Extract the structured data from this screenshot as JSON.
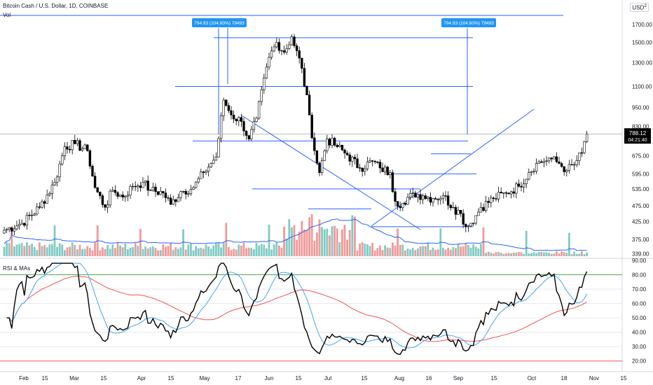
{
  "header": {
    "symbol": "Bitcoin Cash / U.S. Dollar, 1D, COINBASE",
    "volume_label": "Vol",
    "rsi_label": "RSI & MAs",
    "currency": "USD",
    "currency_sup": "2"
  },
  "colors": {
    "up": "#ffffff",
    "down": "#000000",
    "candle_border": "#000000",
    "drawing": "#2962ff",
    "label_bg": "#2196f3",
    "vol_up": "#80cbc4",
    "vol_down": "#ef9a9a",
    "vol_ma": "#2962ff",
    "rsi": "#000000",
    "rsi_ma_fast": "#42a5f5",
    "rsi_ma_slow": "#ef5350",
    "band_80": "#4caf50",
    "band_20": "#ef5350",
    "grid": "#e0e3eb"
  },
  "price_badge": {
    "price": "788.12",
    "countdown": "04:21:40"
  },
  "measure_labels": [
    "794.93 (104.60%) 79493",
    "794.93 (104.60%) 79493"
  ],
  "chart_data": {
    "type": "candlestick",
    "title": "Bitcoin Cash / U.S. Dollar, 1D, COINBASE",
    "y_scale": "log",
    "ylim": [
      330,
      1850
    ],
    "y_ticks": [
      339,
      375,
      425,
      475,
      535,
      595,
      675,
      750,
      830,
      950,
      1100,
      1300,
      1500,
      1700
    ],
    "y_tick_labels": [
      "339.00",
      "375.00",
      "425.00",
      "475.00",
      "535.00",
      "595.00",
      "675.00",
      "750.00",
      "830.00",
      "950.00",
      "1100.00",
      "1300.00",
      "1500.00",
      "1700.00"
    ],
    "x_tick_labels": [
      "Feb",
      "15",
      "Mar",
      "15",
      "Apr",
      "15",
      "May",
      "17",
      "Jun",
      "15",
      "Jul",
      "15",
      "Aug",
      "16",
      "Sep",
      "15",
      "Oct",
      "18",
      "Nov",
      "15"
    ],
    "start_date": "2021-01-18",
    "last_close": 788.12,
    "anchors": [
      [
        "2021-01-18",
        400
      ],
      [
        "2021-01-25",
        420
      ],
      [
        "2021-02-01",
        470
      ],
      [
        "2021-02-07",
        560
      ],
      [
        "2021-02-11",
        720
      ],
      [
        "2021-02-15",
        735
      ],
      [
        "2021-02-20",
        700
      ],
      [
        "2021-02-23",
        540
      ],
      [
        "2021-02-27",
        470
      ],
      [
        "2021-03-02",
        530
      ],
      [
        "2021-03-06",
        505
      ],
      [
        "2021-03-10",
        545
      ],
      [
        "2021-03-14",
        560
      ],
      [
        "2021-03-17",
        530
      ],
      [
        "2021-03-22",
        520
      ],
      [
        "2021-03-25",
        480
      ],
      [
        "2021-03-29",
        525
      ],
      [
        "2021-04-03",
        540
      ],
      [
        "2021-04-07",
        600
      ],
      [
        "2021-04-10",
        640
      ],
      [
        "2021-04-12",
        670
      ],
      [
        "2021-04-15",
        1000
      ],
      [
        "2021-04-18",
        900
      ],
      [
        "2021-04-22",
        860
      ],
      [
        "2021-04-25",
        760
      ],
      [
        "2021-04-28",
        880
      ],
      [
        "2021-05-03",
        1350
      ],
      [
        "2021-05-06",
        1500
      ],
      [
        "2021-05-09",
        1400
      ],
      [
        "2021-05-12",
        1560
      ],
      [
        "2021-05-16",
        1250
      ],
      [
        "2021-05-19",
        900
      ],
      [
        "2021-05-21",
        700
      ],
      [
        "2021-05-23",
        600
      ],
      [
        "2021-05-26",
        760
      ],
      [
        "2021-05-30",
        720
      ],
      [
        "2021-06-03",
        680
      ],
      [
        "2021-06-08",
        620
      ],
      [
        "2021-06-13",
        650
      ],
      [
        "2021-06-16",
        620
      ],
      [
        "2021-06-20",
        600
      ],
      [
        "2021-06-22",
        490
      ],
      [
        "2021-06-26",
        480
      ],
      [
        "2021-06-29",
        520
      ],
      [
        "2021-07-03",
        510
      ],
      [
        "2021-07-07",
        500
      ],
      [
        "2021-07-11",
        510
      ],
      [
        "2021-07-15",
        470
      ],
      [
        "2021-07-18",
        450
      ],
      [
        "2021-07-20",
        410
      ],
      [
        "2021-07-22",
        420
      ],
      [
        "2021-07-26",
        470
      ],
      [
        "2021-07-31",
        500
      ],
      [
        "2021-08-05",
        520
      ],
      [
        "2021-08-10",
        545
      ],
      [
        "2021-08-14",
        600
      ],
      [
        "2021-08-17",
        640
      ],
      [
        "2021-08-20",
        650
      ],
      [
        "2021-08-22",
        665
      ],
      [
        "2021-08-26",
        640
      ],
      [
        "2021-08-29",
        610
      ],
      [
        "2021-09-01",
        635
      ],
      [
        "2021-09-04",
        690
      ],
      [
        "2021-09-06",
        788.12
      ]
    ],
    "horizontal_levels": [
      1550,
      1100,
      750,
      535,
      465,
      410,
      595,
      685
    ],
    "rsi": {
      "ylim": [
        15,
        90
      ],
      "y_tick_labels": [
        "20.00",
        "30.00",
        "40.00",
        "50.00",
        "60.00",
        "70.00",
        "80.00",
        "90.00"
      ],
      "band_lower": 20,
      "band_upper": 80,
      "last": 72
    }
  }
}
